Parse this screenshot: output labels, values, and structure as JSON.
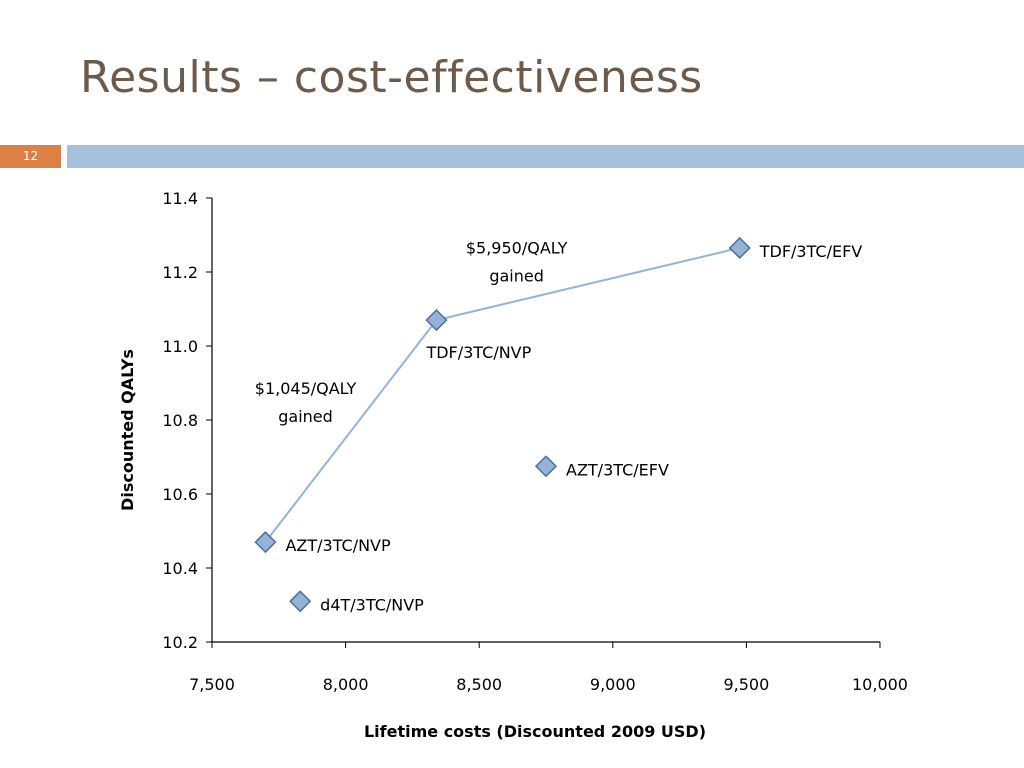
{
  "slide": {
    "title": "Results – cost-effectiveness",
    "page_number": "12"
  },
  "colors": {
    "title": "#6e5a4a",
    "badge": "#dd8047",
    "bar": "#a5c1da",
    "marker_fill": "#95b3d7",
    "marker_stroke": "#4f6f94",
    "line": "#95b3d7"
  },
  "chart_data": {
    "type": "scatter",
    "title": "",
    "xlabel": "Lifetime costs (Discounted 2009 USD)",
    "ylabel": "Discounted QALYs",
    "xlim": [
      7500,
      10000
    ],
    "ylim": [
      10.2,
      11.4
    ],
    "x_ticks": [
      "7,500",
      "8,000",
      "8,500",
      "9,000",
      "9,500",
      "10,000"
    ],
    "y_ticks": [
      "10.2",
      "10.4",
      "10.6",
      "10.8",
      "11.0",
      "11.2",
      "11.4"
    ],
    "grid": false,
    "points": [
      {
        "label": "d4T/3TC/NVP",
        "x": 7830,
        "y": 10.31
      },
      {
        "label": "AZT/3TC/NVP",
        "x": 7700,
        "y": 10.47
      },
      {
        "label": "AZT/3TC/EFV",
        "x": 8750,
        "y": 10.675
      },
      {
        "label": "TDF/3TC/NVP",
        "x": 8340,
        "y": 11.07
      },
      {
        "label": "TDF/3TC/EFV",
        "x": 9475,
        "y": 11.265
      }
    ],
    "frontier": [
      "AZT/3TC/NVP",
      "TDF/3TC/NVP",
      "TDF/3TC/EFV"
    ],
    "annotations": [
      {
        "lines": [
          "$1,045/QALY",
          "gained"
        ],
        "x": 7850,
        "y": 10.87
      },
      {
        "lines": [
          "$5,950/QALY",
          "gained"
        ],
        "x": 8640,
        "y": 11.25
      }
    ]
  }
}
